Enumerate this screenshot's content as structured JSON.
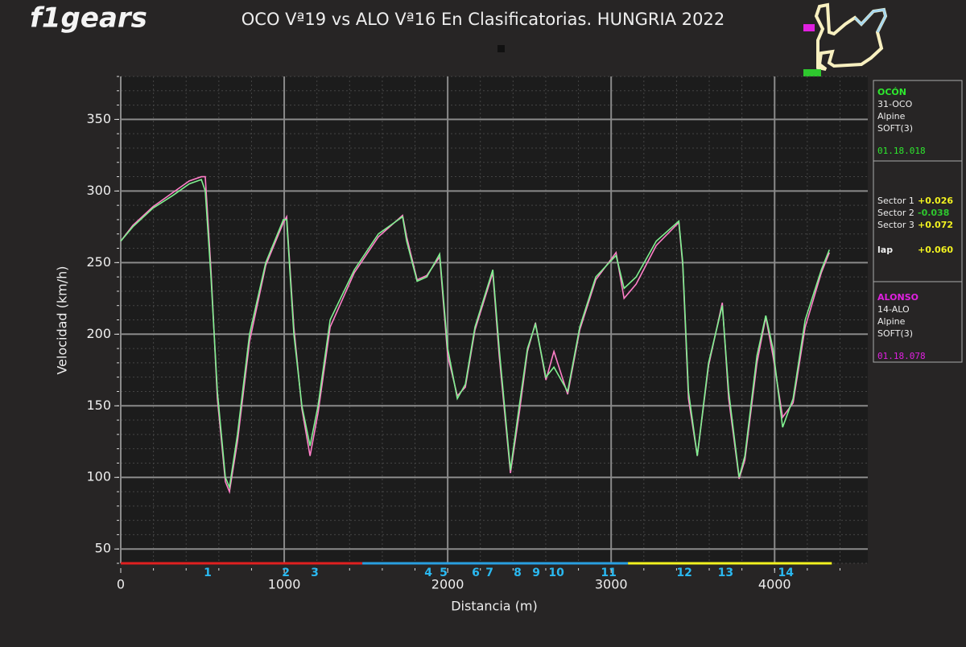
{
  "logo": "f1gears",
  "chart_data": {
    "type": "line",
    "title": "OCO Vª19 vs ALO Vª16 En Clasificatorias. HUNGRIA 2022",
    "x_label": "Distancia (m)",
    "y_label": "Velocidad (km/h)",
    "xlim": [
      0,
      4570
    ],
    "ylim": [
      40,
      380
    ],
    "xticks": [
      0,
      1000,
      2000,
      3000,
      4000
    ],
    "yticks": [
      50,
      100,
      150,
      200,
      250,
      300,
      350
    ],
    "grid": true,
    "x": [
      0,
      74,
      197,
      320,
      419,
      493,
      517,
      552,
      591,
      640,
      665,
      714,
      788,
      887,
      995,
      1015,
      1059,
      1108,
      1158,
      1207,
      1281,
      1429,
      1576,
      1724,
      1749,
      1813,
      1872,
      1951,
      2000,
      2059,
      2108,
      2167,
      2276,
      2315,
      2384,
      2438,
      2488,
      2537,
      2601,
      2650,
      2734,
      2808,
      2906,
      3030,
      3079,
      3153,
      3276,
      3414,
      3438,
      3473,
      3527,
      3596,
      3680,
      3719,
      3783,
      3818,
      3892,
      3946,
      3990,
      4049,
      4113,
      4187,
      4286,
      4335
    ],
    "series": [
      {
        "name": "OCÓN",
        "color": "#7ff08f",
        "values": [
          265,
          275,
          288,
          297,
          305,
          308,
          300,
          240,
          160,
          100,
          93,
          130,
          200,
          250,
          280,
          280,
          200,
          150,
          122,
          150,
          210,
          245,
          270,
          282,
          265,
          237,
          240,
          256,
          190,
          155,
          165,
          205,
          245,
          190,
          105,
          150,
          190,
          207,
          170,
          177,
          160,
          205,
          240,
          255,
          232,
          240,
          265,
          279,
          250,
          160,
          115,
          180,
          220,
          160,
          100,
          115,
          185,
          213,
          190,
          135,
          155,
          210,
          245,
          259
        ]
      },
      {
        "name": "ALONSO",
        "color": "#ff7fc8",
        "values": [
          265,
          276,
          289,
          299,
          307,
          310,
          310,
          245,
          155,
          97,
          90,
          125,
          195,
          248,
          278,
          282,
          205,
          148,
          115,
          145,
          205,
          243,
          268,
          283,
          268,
          238,
          241,
          254,
          185,
          157,
          163,
          203,
          243,
          185,
          103,
          145,
          188,
          208,
          168,
          188,
          158,
          203,
          238,
          257,
          225,
          235,
          262,
          278,
          248,
          155,
          115,
          178,
          222,
          155,
          99,
          112,
          180,
          212,
          185,
          142,
          152,
          205,
          243,
          257
        ]
      }
    ],
    "sectors": {
      "x": [
        0,
        1478,
        3103,
        4350
      ],
      "colors": [
        "#e02020",
        "#2a9fe0",
        "#f2f220"
      ]
    },
    "corners": {
      "labels": [
        "1",
        "2",
        "3",
        "4",
        "5",
        "6",
        "7",
        "8",
        "9",
        "10",
        "11",
        "12",
        "13",
        "14"
      ],
      "x": [
        532,
        1010,
        1187,
        1882,
        1975,
        2172,
        2256,
        2428,
        2542,
        2665,
        2985,
        3448,
        3700,
        4069
      ]
    },
    "panel": {
      "driver1": {
        "code": "31-OCO",
        "team": "Alpine",
        "tyre": "SOFT(3)",
        "time": "01.18.018",
        "color": "#2ee82e"
      },
      "driver2": {
        "code": "14-ALO",
        "team": "Alpine",
        "tyre": "SOFT(3)",
        "time": "01.18.078",
        "color": "#e020e0"
      },
      "sectors": [
        {
          "label": "Sector 1",
          "delta": "+0.026",
          "color": "#f2f220"
        },
        {
          "label": "Sector 2",
          "delta": "-0.038",
          "color": "#2ec82e"
        },
        {
          "label": "Sector 3",
          "delta": "+0.072",
          "color": "#f2f220"
        }
      ],
      "lap": {
        "label": "lap",
        "delta": "+0.060",
        "color": "#f2f220"
      }
    }
  }
}
